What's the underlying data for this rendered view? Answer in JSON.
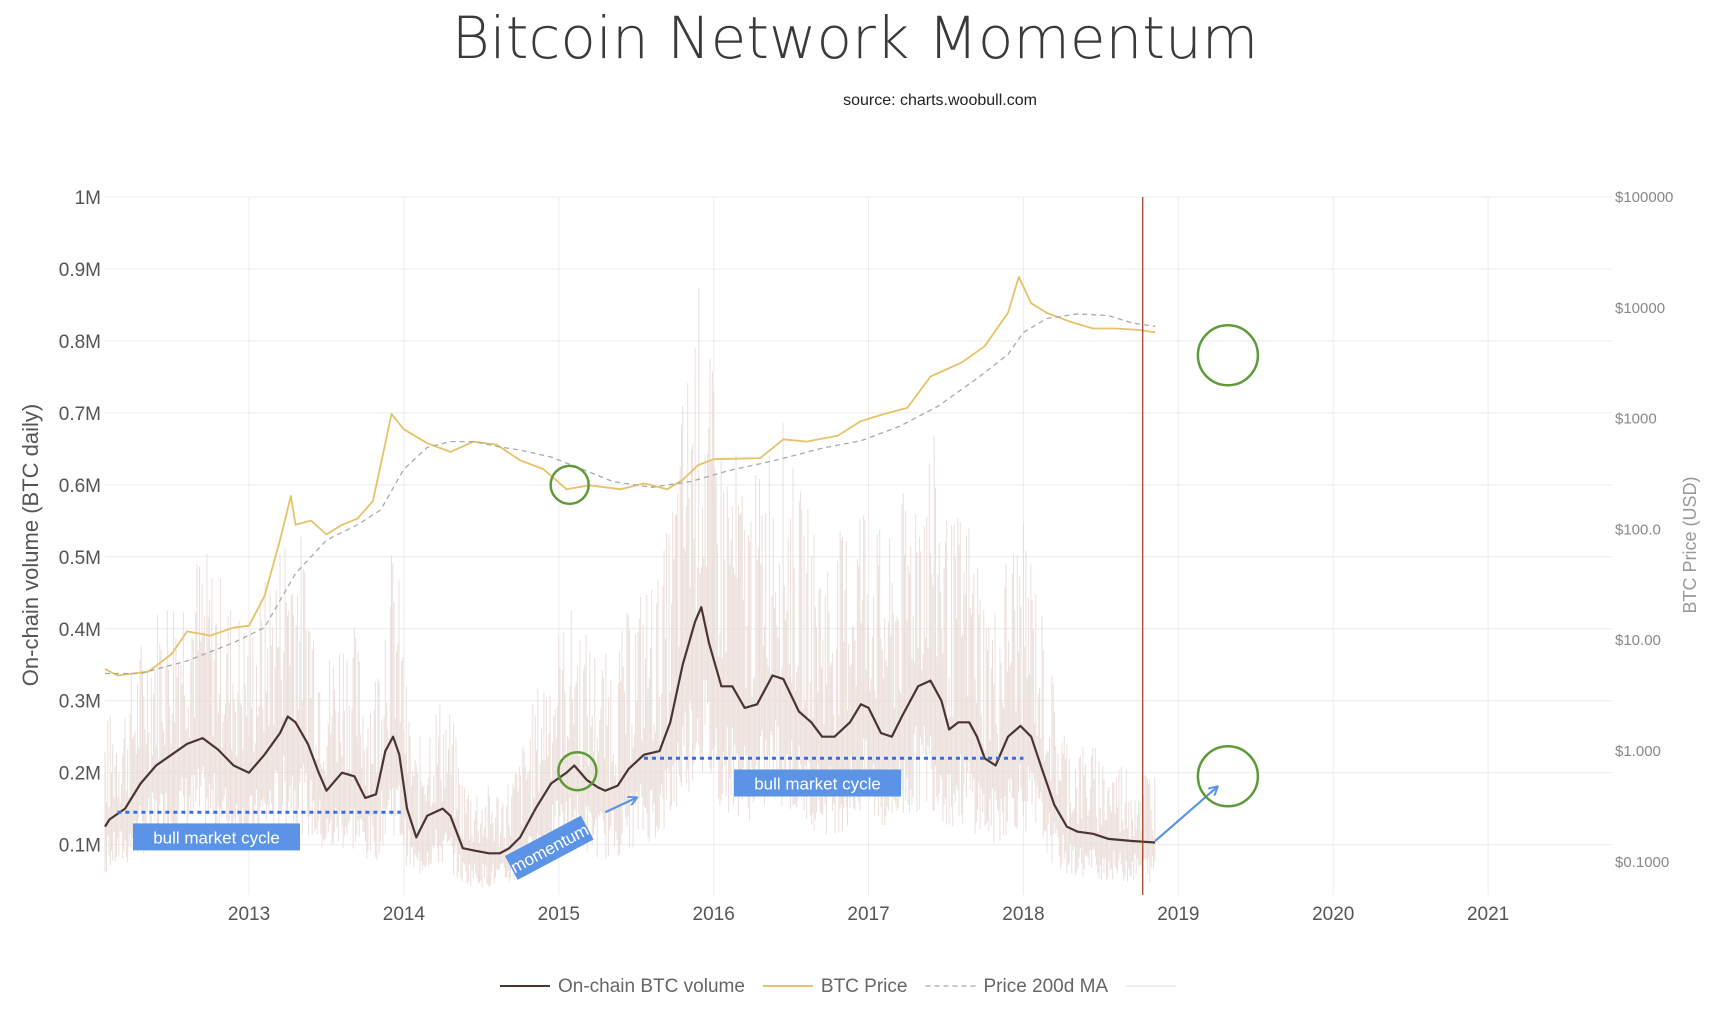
{
  "chart_data": {
    "type": "line",
    "title": "Bitcoin Network Momentum",
    "subtitle": "source: charts.woobull.com",
    "ylabel": "On-chain volume (BTC daily)",
    "y2label": "BTC Price (USD)",
    "ylim": [
      30000,
      1000000
    ],
    "y2lim_log10": [
      -1.3,
      5
    ],
    "xlim": [
      2012.07,
      2021.8
    ],
    "y_ticks": [
      {
        "value": 100000,
        "label": "0.1M"
      },
      {
        "value": 200000,
        "label": "0.2M"
      },
      {
        "value": 300000,
        "label": "0.3M"
      },
      {
        "value": 400000,
        "label": "0.4M"
      },
      {
        "value": 500000,
        "label": "0.5M"
      },
      {
        "value": 600000,
        "label": "0.6M"
      },
      {
        "value": 700000,
        "label": "0.7M"
      },
      {
        "value": 800000,
        "label": "0.8M"
      },
      {
        "value": 900000,
        "label": "0.9M"
      },
      {
        "value": 1000000,
        "label": "1M"
      }
    ],
    "y2_ticks": [
      {
        "value": 0.1,
        "label": "$0.1000"
      },
      {
        "value": 1,
        "label": "$1.000"
      },
      {
        "value": 10,
        "label": "$10.00"
      },
      {
        "value": 100,
        "label": "$100.0"
      },
      {
        "value": 1000,
        "label": "$1000"
      },
      {
        "value": 10000,
        "label": "$10000"
      },
      {
        "value": 100000,
        "label": "$100000"
      }
    ],
    "x_ticks": [
      {
        "value": 2013,
        "label": "2013"
      },
      {
        "value": 2014,
        "label": "2014"
      },
      {
        "value": 2015,
        "label": "2015"
      },
      {
        "value": 2016,
        "label": "2016"
      },
      {
        "value": 2017,
        "label": "2017"
      },
      {
        "value": 2018,
        "label": "2018"
      },
      {
        "value": 2019,
        "label": "2019"
      },
      {
        "value": 2020,
        "label": "2020"
      },
      {
        "value": 2021,
        "label": "2021"
      }
    ],
    "grid": true,
    "legend_position": "bottom-center",
    "series": [
      {
        "name": "On-chain BTC volume",
        "axis": "left",
        "color": "#4a3530",
        "style": "solid",
        "points": [
          [
            2012.0,
            125000
          ],
          [
            2012.1,
            135000
          ],
          [
            2012.2,
            150000
          ],
          [
            2012.3,
            185000
          ],
          [
            2012.4,
            210000
          ],
          [
            2012.5,
            225000
          ],
          [
            2012.6,
            240000
          ],
          [
            2012.7,
            248000
          ],
          [
            2012.8,
            232000
          ],
          [
            2012.9,
            210000
          ],
          [
            2013.0,
            200000
          ],
          [
            2013.1,
            225000
          ],
          [
            2013.2,
            255000
          ],
          [
            2013.25,
            278000
          ],
          [
            2013.3,
            270000
          ],
          [
            2013.38,
            240000
          ],
          [
            2013.45,
            200000
          ],
          [
            2013.5,
            175000
          ],
          [
            2013.6,
            200000
          ],
          [
            2013.68,
            195000
          ],
          [
            2013.75,
            165000
          ],
          [
            2013.82,
            170000
          ],
          [
            2013.88,
            230000
          ],
          [
            2013.93,
            250000
          ],
          [
            2013.97,
            225000
          ],
          [
            2014.02,
            150000
          ],
          [
            2014.08,
            110000
          ],
          [
            2014.15,
            140000
          ],
          [
            2014.25,
            150000
          ],
          [
            2014.3,
            140000
          ],
          [
            2014.38,
            95000
          ],
          [
            2014.45,
            92000
          ],
          [
            2014.55,
            88000
          ],
          [
            2014.62,
            88000
          ],
          [
            2014.68,
            95000
          ],
          [
            2014.75,
            110000
          ],
          [
            2014.85,
            150000
          ],
          [
            2014.95,
            185000
          ],
          [
            2015.05,
            200000
          ],
          [
            2015.1,
            210000
          ],
          [
            2015.18,
            190000
          ],
          [
            2015.25,
            180000
          ],
          [
            2015.3,
            175000
          ],
          [
            2015.38,
            182000
          ],
          [
            2015.45,
            205000
          ],
          [
            2015.55,
            225000
          ],
          [
            2015.65,
            230000
          ],
          [
            2015.72,
            270000
          ],
          [
            2015.8,
            350000
          ],
          [
            2015.88,
            410000
          ],
          [
            2015.92,
            430000
          ],
          [
            2015.97,
            380000
          ],
          [
            2016.05,
            320000
          ],
          [
            2016.12,
            320000
          ],
          [
            2016.2,
            290000
          ],
          [
            2016.28,
            295000
          ],
          [
            2016.38,
            335000
          ],
          [
            2016.45,
            330000
          ],
          [
            2016.55,
            285000
          ],
          [
            2016.63,
            270000
          ],
          [
            2016.7,
            250000
          ],
          [
            2016.78,
            250000
          ],
          [
            2016.88,
            270000
          ],
          [
            2016.95,
            295000
          ],
          [
            2017.0,
            290000
          ],
          [
            2017.08,
            255000
          ],
          [
            2017.15,
            250000
          ],
          [
            2017.22,
            280000
          ],
          [
            2017.32,
            320000
          ],
          [
            2017.4,
            328000
          ],
          [
            2017.47,
            300000
          ],
          [
            2017.52,
            260000
          ],
          [
            2017.58,
            270000
          ],
          [
            2017.65,
            270000
          ],
          [
            2017.7,
            250000
          ],
          [
            2017.75,
            220000
          ],
          [
            2017.82,
            210000
          ],
          [
            2017.9,
            250000
          ],
          [
            2017.98,
            265000
          ],
          [
            2018.05,
            250000
          ],
          [
            2018.12,
            205000
          ],
          [
            2018.2,
            155000
          ],
          [
            2018.28,
            125000
          ],
          [
            2018.35,
            118000
          ],
          [
            2018.45,
            115000
          ],
          [
            2018.55,
            108000
          ],
          [
            2018.7,
            105000
          ],
          [
            2018.85,
            103000
          ]
        ]
      },
      {
        "name": "BTC Price",
        "axis": "right",
        "color": "#e6c26a",
        "style": "solid",
        "points": [
          [
            2012.0,
            5.5
          ],
          [
            2012.15,
            4.8
          ],
          [
            2012.35,
            5.2
          ],
          [
            2012.5,
            7.5
          ],
          [
            2012.6,
            12
          ],
          [
            2012.75,
            11
          ],
          [
            2012.9,
            13
          ],
          [
            2013.0,
            13.5
          ],
          [
            2013.1,
            25
          ],
          [
            2013.2,
            80
          ],
          [
            2013.27,
            200
          ],
          [
            2013.3,
            110
          ],
          [
            2013.4,
            120
          ],
          [
            2013.5,
            90
          ],
          [
            2013.6,
            110
          ],
          [
            2013.7,
            125
          ],
          [
            2013.8,
            180
          ],
          [
            2013.88,
            600
          ],
          [
            2013.92,
            1100
          ],
          [
            2014.0,
            800
          ],
          [
            2014.15,
            600
          ],
          [
            2014.3,
            500
          ],
          [
            2014.45,
            620
          ],
          [
            2014.6,
            580
          ],
          [
            2014.75,
            420
          ],
          [
            2014.9,
            350
          ],
          [
            2015.05,
            230
          ],
          [
            2015.2,
            250
          ],
          [
            2015.4,
            230
          ],
          [
            2015.55,
            260
          ],
          [
            2015.7,
            230
          ],
          [
            2015.8,
            280
          ],
          [
            2015.9,
            380
          ],
          [
            2016.0,
            430
          ],
          [
            2016.3,
            440
          ],
          [
            2016.45,
            650
          ],
          [
            2016.6,
            620
          ],
          [
            2016.8,
            700
          ],
          [
            2016.95,
            950
          ],
          [
            2017.1,
            1100
          ],
          [
            2017.25,
            1250
          ],
          [
            2017.4,
            2400
          ],
          [
            2017.6,
            3200
          ],
          [
            2017.75,
            4500
          ],
          [
            2017.9,
            9000
          ],
          [
            2017.97,
            19000
          ],
          [
            2018.05,
            11000
          ],
          [
            2018.15,
            9000
          ],
          [
            2018.3,
            7500
          ],
          [
            2018.45,
            6500
          ],
          [
            2018.6,
            6500
          ],
          [
            2018.75,
            6300
          ],
          [
            2018.85,
            6000
          ]
        ]
      },
      {
        "name": "Price 200d MA",
        "axis": "right",
        "color": "#aaaaaa",
        "style": "dashed",
        "points": [
          [
            2012.0,
            5.0
          ],
          [
            2012.3,
            5.0
          ],
          [
            2012.6,
            6.5
          ],
          [
            2012.9,
            9.5
          ],
          [
            2013.1,
            13
          ],
          [
            2013.3,
            40
          ],
          [
            2013.5,
            80
          ],
          [
            2013.7,
            110
          ],
          [
            2013.85,
            150
          ],
          [
            2014.0,
            350
          ],
          [
            2014.15,
            550
          ],
          [
            2014.3,
            620
          ],
          [
            2014.45,
            620
          ],
          [
            2014.6,
            560
          ],
          [
            2014.75,
            520
          ],
          [
            2014.95,
            450
          ],
          [
            2015.15,
            350
          ],
          [
            2015.35,
            270
          ],
          [
            2015.6,
            240
          ],
          [
            2015.85,
            270
          ],
          [
            2016.1,
            340
          ],
          [
            2016.4,
            420
          ],
          [
            2016.7,
            540
          ],
          [
            2016.95,
            630
          ],
          [
            2017.2,
            850
          ],
          [
            2017.45,
            1300
          ],
          [
            2017.7,
            2300
          ],
          [
            2017.9,
            3800
          ],
          [
            2018.0,
            6000
          ],
          [
            2018.15,
            8000
          ],
          [
            2018.35,
            8800
          ],
          [
            2018.55,
            8500
          ],
          [
            2018.7,
            7300
          ],
          [
            2018.85,
            6800
          ]
        ]
      }
    ],
    "reference_line": {
      "x": 2018.77,
      "color": "#a0452d"
    },
    "annotations": [
      {
        "type": "dotted-hline",
        "x1": 2012.15,
        "x2": 2013.98,
        "y": 145000,
        "color": "#3b6fd4"
      },
      {
        "type": "dotted-hline",
        "x1": 2015.55,
        "x2": 2018.0,
        "y": 220000,
        "color": "#3b6fd4"
      },
      {
        "type": "label",
        "text": "bull market cycle",
        "x": 2012.79,
        "y": 110000,
        "bg": "#5b93e6"
      },
      {
        "type": "label",
        "text": "bull market cycle",
        "x": 2016.67,
        "y": 185000,
        "bg": "#5b93e6"
      },
      {
        "type": "label",
        "text": "momentum",
        "x": 2014.94,
        "y": 95000,
        "bg": "#5b93e6",
        "rotate": -28
      },
      {
        "type": "arrow",
        "x1": 2015.3,
        "y1": 145000,
        "x2": 2015.5,
        "y2": 165000,
        "color": "#5b93e6"
      },
      {
        "type": "arrow",
        "x1": 2018.85,
        "y1": 105000,
        "x2": 2019.25,
        "y2": 180000,
        "color": "#5b93e6"
      },
      {
        "type": "circle",
        "x": 2015.07,
        "y": 600000,
        "r": 19,
        "color": "#5f9a3a"
      },
      {
        "type": "circle",
        "x": 2015.12,
        "y": 202000,
        "r": 19,
        "color": "#5f9a3a"
      },
      {
        "type": "circle",
        "x": 2019.32,
        "y": 780000,
        "r": 30,
        "color": "#5f9a3a"
      },
      {
        "type": "circle",
        "x": 2019.32,
        "y": 195000,
        "r": 30,
        "color": "#5f9a3a"
      }
    ]
  }
}
